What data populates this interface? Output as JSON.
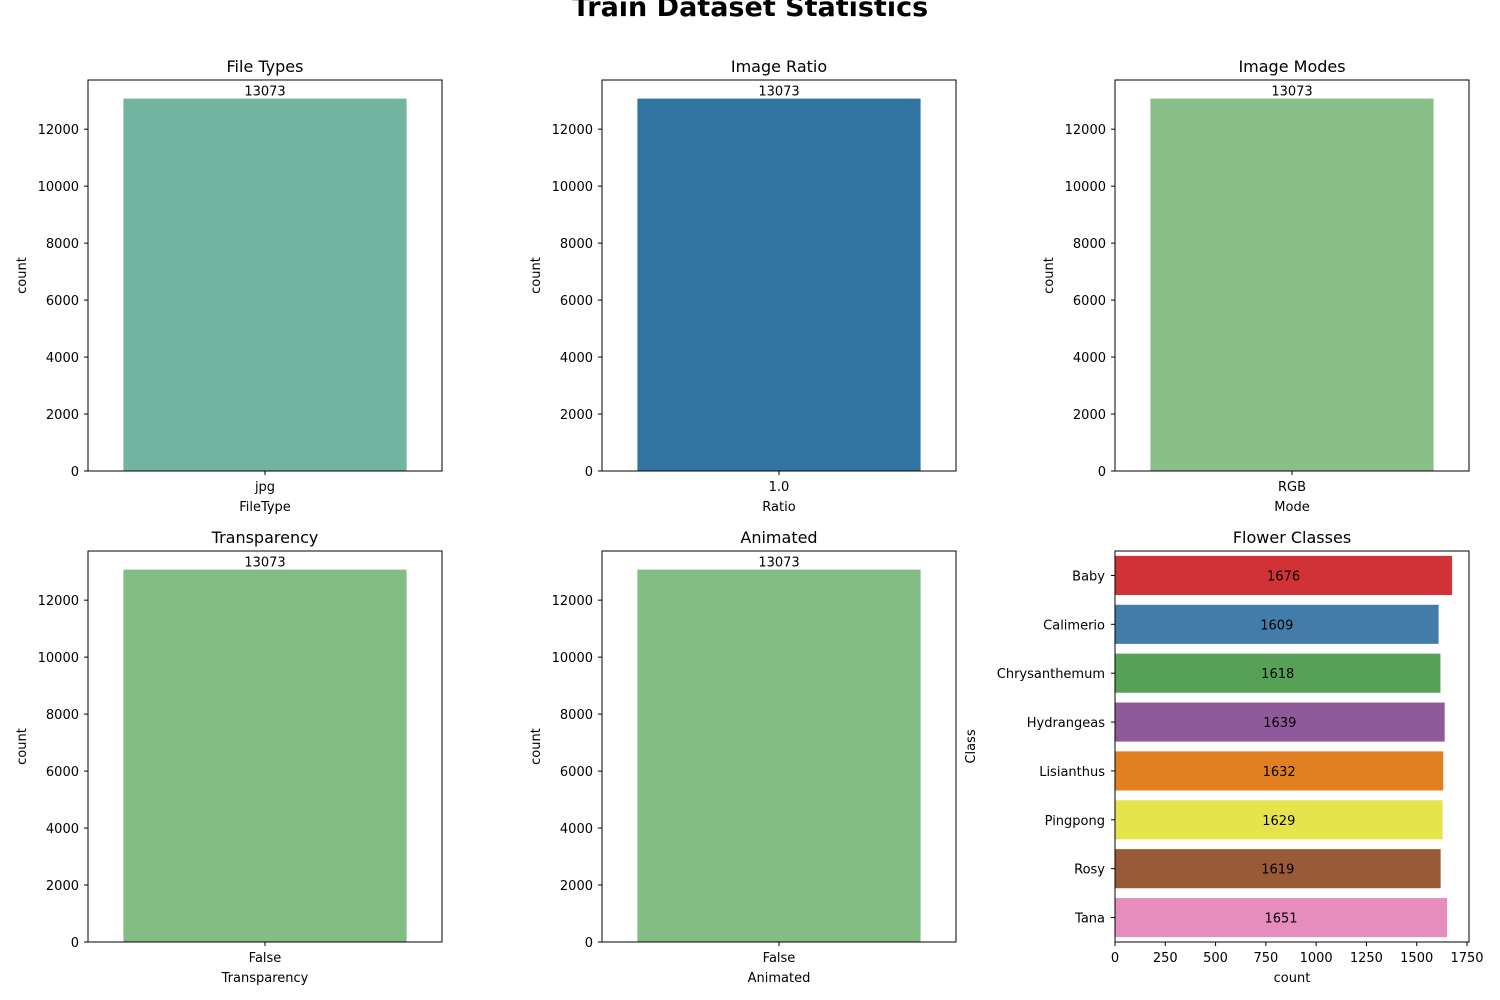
{
  "figure": {
    "title": "Train Dataset Statistics"
  },
  "chart_data": [
    {
      "type": "bar",
      "title": "File Types",
      "xlabel": "FileType",
      "ylabel": "count",
      "categories": [
        "jpg"
      ],
      "values": [
        13073
      ],
      "data_labels": [
        "13073"
      ],
      "ylim": [
        0,
        13726
      ],
      "yticks": [
        0,
        2000,
        4000,
        6000,
        8000,
        10000,
        12000
      ],
      "colors": [
        "#73b4a0"
      ],
      "grid": false
    },
    {
      "type": "bar",
      "title": "Image Ratio",
      "xlabel": "Ratio",
      "ylabel": "count",
      "categories": [
        "1.0"
      ],
      "values": [
        13073
      ],
      "data_labels": [
        "13073"
      ],
      "ylim": [
        0,
        13726
      ],
      "yticks": [
        0,
        2000,
        4000,
        6000,
        8000,
        10000,
        12000
      ],
      "colors": [
        "#3274a1"
      ],
      "grid": false
    },
    {
      "type": "bar",
      "title": "Image Modes",
      "xlabel": "Mode",
      "ylabel": "count",
      "categories": [
        "RGB"
      ],
      "values": [
        13073
      ],
      "data_labels": [
        "13073"
      ],
      "ylim": [
        0,
        13726
      ],
      "yticks": [
        0,
        2000,
        4000,
        6000,
        8000,
        10000,
        12000
      ],
      "colors": [
        "#8abf88"
      ],
      "grid": false
    },
    {
      "type": "bar",
      "title": "Transparency",
      "xlabel": "Transparency",
      "ylabel": "count",
      "categories": [
        "False"
      ],
      "values": [
        13073
      ],
      "data_labels": [
        "13073"
      ],
      "ylim": [
        0,
        13726
      ],
      "yticks": [
        0,
        2000,
        4000,
        6000,
        8000,
        10000,
        12000
      ],
      "colors": [
        "#82bd84"
      ],
      "grid": false
    },
    {
      "type": "bar",
      "title": "Animated",
      "xlabel": "Animated",
      "ylabel": "count",
      "categories": [
        "False"
      ],
      "values": [
        13073
      ],
      "data_labels": [
        "13073"
      ],
      "ylim": [
        0,
        13726
      ],
      "yticks": [
        0,
        2000,
        4000,
        6000,
        8000,
        10000,
        12000
      ],
      "colors": [
        "#82bd84"
      ],
      "grid": false
    },
    {
      "type": "bar",
      "orientation": "horizontal",
      "title": "Flower Classes",
      "xlabel": "count",
      "ylabel": "Class",
      "categories": [
        "Baby",
        "Calimerio",
        "Chrysanthemum",
        "Hydrangeas",
        "Lisianthus",
        "Pingpong",
        "Rosy",
        "Tana"
      ],
      "values": [
        1676,
        1609,
        1618,
        1639,
        1632,
        1629,
        1619,
        1651
      ],
      "data_labels": [
        "1676",
        "1609",
        "1618",
        "1639",
        "1632",
        "1629",
        "1619",
        "1651"
      ],
      "xlim": [
        0,
        1760
      ],
      "xticks": [
        0,
        250,
        500,
        750,
        1000,
        1250,
        1500,
        1750
      ],
      "colors": [
        "#d03236",
        "#447ca9",
        "#57a157",
        "#8f5a99",
        "#e17f21",
        "#e7e44b",
        "#995a38",
        "#e78dbd"
      ],
      "grid": false
    }
  ]
}
